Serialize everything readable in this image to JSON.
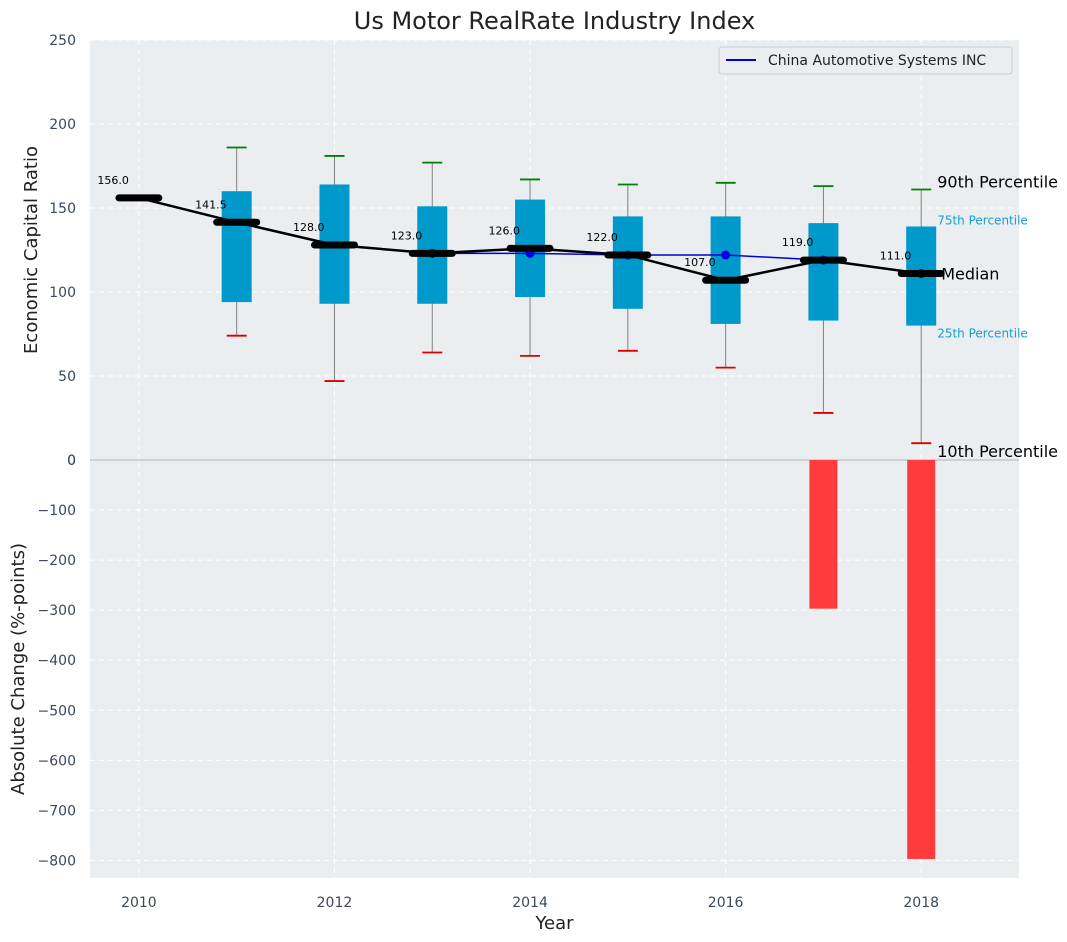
{
  "chart_data": {
    "type": "box",
    "title": "Us Motor RealRate Industry Index",
    "xlabel": "Year",
    "x_ticks": [
      "2010",
      "2012",
      "2014",
      "2016",
      "2018"
    ],
    "xlim": [
      2009.5,
      2019
    ],
    "top_panel": {
      "ylabel": "Economic Capital Ratio",
      "ylim": [
        0,
        250
      ],
      "y_ticks": [
        "0",
        "50",
        "100",
        "150",
        "200",
        "250"
      ],
      "years": [
        2010,
        2011,
        2012,
        2013,
        2014,
        2015,
        2016,
        2017,
        2018
      ],
      "company_series": {
        "name": "China Automotive Systems INC",
        "color": "#0000dd",
        "x": [
          2013,
          2014,
          2015,
          2016,
          2017,
          2018
        ],
        "values": [
          123,
          123,
          122,
          122,
          119,
          111
        ]
      },
      "median_series": {
        "color": "#000000",
        "values": [
          156.0,
          141.5,
          128.0,
          123.0,
          126.0,
          122.0,
          107.0,
          119.0,
          111.0
        ],
        "value_labels": [
          "156.0",
          "141.5",
          "128.0",
          "123.0",
          "126.0",
          "122.0",
          "107.0",
          "119.0",
          "111.0"
        ]
      },
      "boxes": [
        {
          "year": 2011,
          "p10": 74,
          "p25": 94,
          "p75": 160,
          "p90": 186
        },
        {
          "year": 2012,
          "p10": 47,
          "p25": 93,
          "p75": 164,
          "p90": 181
        },
        {
          "year": 2013,
          "p10": 64,
          "p25": 93,
          "p75": 151,
          "p90": 177
        },
        {
          "year": 2014,
          "p10": 62,
          "p25": 97,
          "p75": 155,
          "p90": 167
        },
        {
          "year": 2015,
          "p10": 65,
          "p25": 90,
          "p75": 145,
          "p90": 164
        },
        {
          "year": 2016,
          "p10": 55,
          "p25": 81,
          "p75": 145,
          "p90": 165
        },
        {
          "year": 2017,
          "p10": 28,
          "p25": 83,
          "p75": 141,
          "p90": 163
        },
        {
          "year": 2018,
          "p10": 10,
          "p25": 80,
          "p75": 139,
          "p90": 161
        }
      ],
      "annotations": {
        "p90": "90th Percentile",
        "p75": "75th Percentile",
        "median": "Median",
        "p25": "25th Percentile",
        "p10": "10th Percentile"
      },
      "colors": {
        "box": "#0099cc",
        "p90_cap": "#008000",
        "p10_cap": "#dd0000",
        "whisker": "#808080",
        "background": "#eaeef0"
      },
      "legend_position": "top-right",
      "grid": true
    },
    "bottom_panel": {
      "type": "bar",
      "ylabel": "Absolute Change (%-points)",
      "ylim": [
        -835,
        0
      ],
      "y_ticks": [
        "0",
        "−100",
        "−200",
        "−300",
        "−400",
        "−500",
        "−600",
        "−700",
        "−800"
      ],
      "x": [
        2017,
        2018
      ],
      "values": [
        -297,
        -797
      ],
      "color": "#ff3b3b",
      "grid": true
    }
  }
}
